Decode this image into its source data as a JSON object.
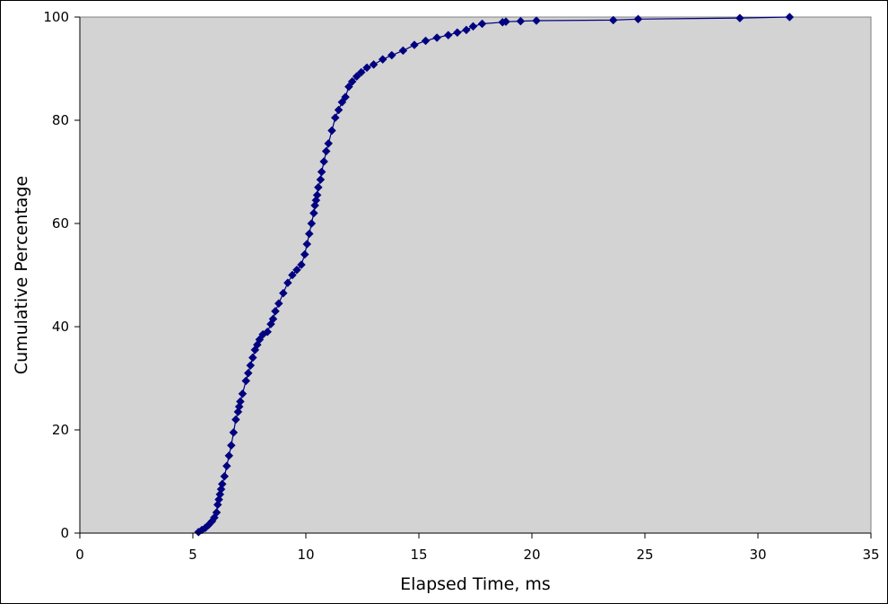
{
  "chart_data": {
    "type": "line",
    "title": "",
    "xlabel": "Elapsed Time, ms",
    "ylabel": "Cumulative Percentage",
    "xlim": [
      0,
      35
    ],
    "ylim": [
      0,
      100
    ],
    "xticks": [
      0,
      5,
      10,
      15,
      20,
      25,
      30,
      35
    ],
    "yticks": [
      0,
      20,
      40,
      60,
      80,
      100
    ],
    "grid": false,
    "legend": "none",
    "colors": {
      "series": "#000080",
      "plot_background": "#d3d3d3",
      "page_background": "#ffffff"
    },
    "marker": "diamond",
    "series": [
      {
        "x": [
          5.25,
          5.4,
          5.55,
          5.7,
          5.85,
          5.95,
          6.05,
          6.1,
          6.15,
          6.2,
          6.25,
          6.3,
          6.4,
          6.5,
          6.6,
          6.7,
          6.8,
          6.9,
          7.0,
          7.05,
          7.1,
          7.2,
          7.35,
          7.45,
          7.55,
          7.65,
          7.75,
          7.85,
          7.95,
          8.1,
          8.3,
          8.45,
          8.55,
          8.65,
          8.8,
          9.0,
          9.2,
          9.4,
          9.6,
          9.8,
          9.95,
          10.05,
          10.15,
          10.25,
          10.35,
          10.4,
          10.45,
          10.5,
          10.55,
          10.65,
          10.7,
          10.8,
          10.9,
          11.0,
          11.15,
          11.3,
          11.45,
          11.6,
          11.75,
          11.9,
          12.05,
          12.25,
          12.45,
          12.7,
          13.0,
          13.4,
          13.8,
          14.3,
          14.8,
          15.3,
          15.8,
          16.3,
          16.7,
          17.1,
          17.4,
          17.8,
          18.7,
          18.85,
          19.5,
          20.2,
          23.6,
          24.7,
          29.2,
          31.4
        ],
        "y": [
          0.2,
          0.6,
          1.0,
          1.6,
          2.3,
          3.0,
          4.0,
          5.5,
          6.5,
          7.5,
          8.5,
          9.5,
          11.0,
          13.0,
          15.0,
          17.0,
          19.5,
          22.0,
          23.5,
          24.5,
          25.5,
          27.0,
          29.5,
          31.0,
          32.5,
          34.0,
          35.5,
          36.5,
          37.5,
          38.5,
          39.0,
          40.5,
          41.5,
          43.0,
          44.5,
          46.5,
          48.5,
          50.0,
          51.0,
          52.0,
          54.0,
          56.0,
          58.0,
          60.0,
          62.0,
          63.5,
          64.5,
          65.5,
          67.0,
          68.5,
          70.0,
          72.0,
          74.0,
          75.5,
          78.0,
          80.5,
          82.0,
          83.5,
          84.5,
          86.5,
          87.5,
          88.5,
          89.3,
          90.2,
          90.8,
          91.8,
          92.6,
          93.5,
          94.6,
          95.4,
          96.0,
          96.5,
          97.0,
          97.5,
          98.2,
          98.7,
          99.0,
          99.1,
          99.2,
          99.3,
          99.4,
          99.6,
          99.8,
          100.0
        ]
      }
    ]
  }
}
